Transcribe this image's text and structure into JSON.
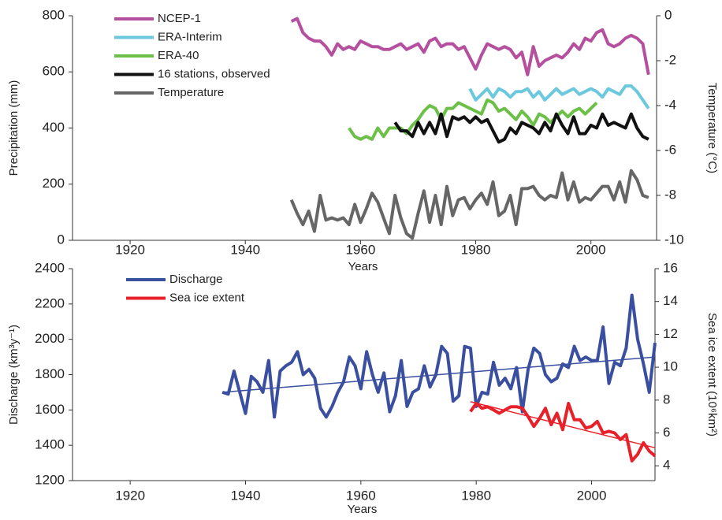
{
  "chart_data": [
    {
      "type": "line",
      "x_label": "Years",
      "y_label": "Precipitation (mm)",
      "y2_label": "Temperature (°C)",
      "xlim": [
        1910,
        2011.4
      ],
      "xticks": [
        1920,
        1940,
        1960,
        1980,
        2000
      ],
      "ylim": [
        0,
        800
      ],
      "yticks": [
        0,
        200,
        400,
        600,
        800
      ],
      "y2lim": [
        -10,
        0
      ],
      "y2ticks": [
        -10,
        -8,
        -6,
        -4,
        -2,
        0
      ],
      "legend": "upper left",
      "x": [
        1948,
        1949,
        1950,
        1951,
        1952,
        1953,
        1954,
        1955,
        1956,
        1957,
        1958,
        1959,
        1960,
        1961,
        1962,
        1963,
        1964,
        1965,
        1966,
        1967,
        1968,
        1969,
        1970,
        1971,
        1972,
        1973,
        1974,
        1975,
        1976,
        1977,
        1978,
        1979,
        1980,
        1981,
        1982,
        1983,
        1984,
        1985,
        1986,
        1987,
        1988,
        1989,
        1990,
        1991,
        1992,
        1993,
        1994,
        1995,
        1996,
        1997,
        1998,
        1999,
        2000,
        2001,
        2002,
        2003,
        2004,
        2005,
        2006,
        2007,
        2008,
        2009,
        2010
      ],
      "series": [
        {
          "name": "NCEP-1",
          "color": "#b4509e",
          "values": [
            780,
            790,
            740,
            720,
            710,
            710,
            690,
            660,
            700,
            680,
            690,
            680,
            710,
            700,
            690,
            690,
            680,
            680,
            690,
            700,
            680,
            690,
            700,
            670,
            710,
            720,
            690,
            700,
            700,
            680,
            690,
            650,
            610,
            660,
            700,
            690,
            680,
            690,
            680,
            650,
            670,
            590,
            690,
            620,
            640,
            650,
            660,
            650,
            670,
            700,
            680,
            720,
            710,
            740,
            750,
            700,
            690,
            700,
            720,
            730,
            720,
            700,
            590
          ]
        },
        {
          "name": "ERA-Interim",
          "color": "#6cc8dc",
          "values": [
            null,
            null,
            null,
            null,
            null,
            null,
            null,
            null,
            null,
            null,
            null,
            null,
            null,
            null,
            null,
            null,
            null,
            null,
            null,
            null,
            null,
            null,
            null,
            null,
            null,
            null,
            null,
            null,
            null,
            null,
            null,
            540,
            500,
            520,
            540,
            510,
            540,
            530,
            510,
            530,
            530,
            540,
            510,
            530,
            500,
            520,
            540,
            520,
            530,
            540,
            520,
            530,
            540,
            530,
            510,
            540,
            530,
            520,
            550,
            550,
            530,
            500,
            470
          ]
        },
        {
          "name": "ERA-40",
          "color": "#6cbf47",
          "values": [
            null,
            null,
            null,
            null,
            null,
            null,
            null,
            null,
            null,
            null,
            400,
            370,
            360,
            370,
            360,
            400,
            370,
            400,
            400,
            400,
            380,
            410,
            430,
            460,
            480,
            470,
            430,
            470,
            470,
            490,
            480,
            470,
            460,
            450,
            500,
            490,
            460,
            470,
            450,
            430,
            460,
            440,
            410,
            450,
            440,
            420,
            440,
            460,
            440,
            460,
            470,
            450,
            470,
            490,
            null,
            null,
            null,
            null,
            null,
            null,
            null,
            null,
            null
          ]
        },
        {
          "name": "16 stations, observed",
          "color": "#111111",
          "values": [
            null,
            null,
            null,
            null,
            null,
            null,
            null,
            null,
            null,
            null,
            null,
            null,
            null,
            null,
            null,
            null,
            null,
            null,
            420,
            390,
            390,
            370,
            420,
            380,
            420,
            380,
            450,
            370,
            440,
            430,
            440,
            420,
            440,
            420,
            430,
            390,
            350,
            360,
            400,
            380,
            420,
            410,
            400,
            380,
            420,
            390,
            450,
            410,
            380,
            440,
            380,
            380,
            410,
            400,
            450,
            410,
            420,
            410,
            400,
            450,
            400,
            370,
            360
          ]
        },
        {
          "name": "Temperature",
          "color": "#666666",
          "axis": "y2",
          "values": [
            -8.2,
            -8.8,
            -9.3,
            -8.7,
            -9.6,
            -8.0,
            -9.1,
            -9.0,
            -9.1,
            -9.0,
            -9.3,
            -8.4,
            -9.2,
            -8.6,
            -7.9,
            -8.3,
            -9.0,
            -9.7,
            -8.0,
            -9.0,
            -9.7,
            -9.9,
            -8.8,
            -7.8,
            -9.2,
            -8.0,
            -9.3,
            -7.6,
            -8.9,
            -8.2,
            -8.1,
            -8.6,
            -8.2,
            -7.9,
            -8.4,
            -7.4,
            -8.9,
            -8.7,
            -8.0,
            -9.3,
            -7.7,
            -7.7,
            -7.6,
            -8.0,
            -8.2,
            -8.0,
            -8.1,
            -7.0,
            -8.2,
            -7.4,
            -8.3,
            -8.1,
            -8.2,
            -7.9,
            -7.6,
            -7.6,
            -8.2,
            -7.4,
            -8.3,
            -6.9,
            -7.3,
            -8.0,
            -8.1
          ]
        }
      ]
    },
    {
      "type": "line",
      "x_label": "Years",
      "y_label": "Discharge (km³y⁻¹)",
      "y2_label": "Sea ice extent (10⁶km²)",
      "xlim": [
        1910,
        2011
      ],
      "xticks": [
        1920,
        1940,
        1960,
        1980,
        2000
      ],
      "ylim": [
        1200,
        2400
      ],
      "yticks": [
        1200,
        1400,
        1600,
        1800,
        2000,
        2200,
        2400
      ],
      "y2lim": [
        3.1,
        16
      ],
      "y2ticks": [
        4,
        6,
        8,
        10,
        12,
        14,
        16
      ],
      "legend": "upper left",
      "x": [
        1936,
        1937,
        1938,
        1939,
        1940,
        1941,
        1942,
        1943,
        1944,
        1945,
        1946,
        1947,
        1948,
        1949,
        1950,
        1951,
        1952,
        1953,
        1954,
        1955,
        1956,
        1957,
        1958,
        1959,
        1960,
        1961,
        1962,
        1963,
        1964,
        1965,
        1966,
        1967,
        1968,
        1969,
        1970,
        1971,
        1972,
        1973,
        1974,
        1975,
        1976,
        1977,
        1978,
        1979,
        1980,
        1981,
        1982,
        1983,
        1984,
        1985,
        1986,
        1987,
        1988,
        1989,
        1990,
        1991,
        1992,
        1993,
        1994,
        1995,
        1996,
        1997,
        1998,
        1999,
        2000,
        2001,
        2002,
        2003,
        2004,
        2005,
        2006,
        2007,
        2008,
        2009,
        2010,
        2011
      ],
      "series": [
        {
          "name": "Discharge",
          "color": "#3a4fa0",
          "values": [
            1700,
            1690,
            1820,
            1700,
            1580,
            1790,
            1760,
            1700,
            1880,
            1560,
            1820,
            1850,
            1870,
            1930,
            1800,
            1830,
            1780,
            1610,
            1560,
            1620,
            1700,
            1760,
            1900,
            1850,
            1720,
            1930,
            1800,
            1700,
            1810,
            1590,
            1680,
            1880,
            1620,
            1700,
            1720,
            1850,
            1730,
            1800,
            1960,
            1920,
            1650,
            1680,
            1960,
            1950,
            1620,
            1700,
            1690,
            1870,
            1740,
            1780,
            1720,
            1840,
            1590,
            1830,
            1950,
            1920,
            1800,
            1760,
            1780,
            1860,
            1840,
            1960,
            1880,
            1900,
            1880,
            1880,
            2070,
            1750,
            1870,
            1850,
            1950,
            2250,
            2000,
            1860,
            1700,
            1980
          ],
          "trend": {
            "x": [
              1936,
              2011
            ],
            "values": [
              1700,
              1900
            ]
          }
        },
        {
          "name": "Sea ice extent",
          "color": "#e8202a",
          "axis": "y2",
          "values": [
            null,
            null,
            null,
            null,
            null,
            null,
            null,
            null,
            null,
            null,
            null,
            null,
            null,
            null,
            null,
            null,
            null,
            null,
            null,
            null,
            null,
            null,
            null,
            null,
            null,
            null,
            null,
            null,
            null,
            null,
            null,
            null,
            null,
            null,
            null,
            null,
            null,
            null,
            null,
            null,
            null,
            null,
            null,
            7.3,
            7.8,
            7.5,
            7.6,
            7.4,
            7.2,
            7.4,
            7.6,
            7.6,
            7.5,
            7.0,
            6.4,
            6.9,
            7.5,
            6.5,
            7.2,
            6.2,
            7.8,
            6.8,
            6.8,
            6.3,
            6.4,
            6.7,
            6.0,
            6.1,
            6.0,
            5.6,
            5.9,
            4.3,
            4.7,
            5.4,
            4.9,
            4.6
          ],
          "trend": {
            "x": [
              1979,
              2011
            ],
            "values": [
              7.9,
              5.1
            ]
          }
        }
      ]
    }
  ]
}
